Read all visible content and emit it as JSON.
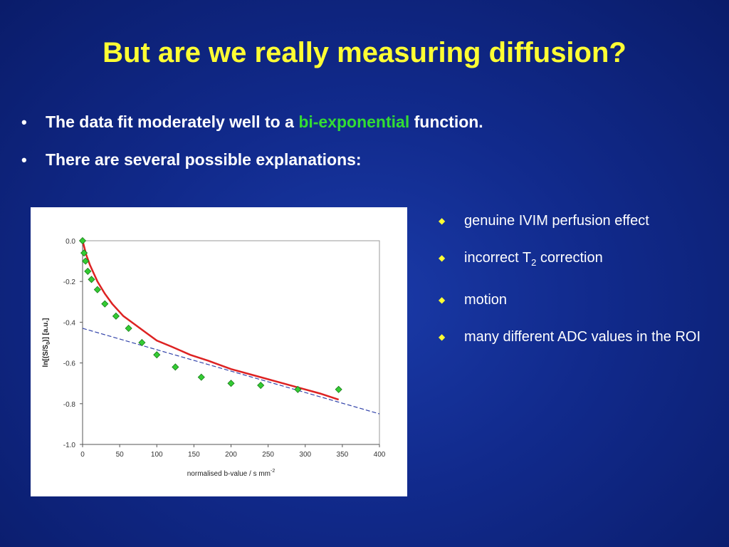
{
  "slide": {
    "title": "But are we really measuring diffusion?",
    "bullets": [
      {
        "pre": "The data fit moderately well to a ",
        "highlight": "bi-exponential",
        "post": " function."
      },
      {
        "text": "There are several possible explanations:"
      }
    ],
    "explanations": [
      {
        "text": "genuine IVIM perfusion effect"
      },
      {
        "pre": "incorrect T",
        "sub": "2",
        "post": " correction"
      },
      {
        "text": "motion"
      },
      {
        "text": "many different ADC values in the ROI"
      }
    ],
    "bullet_glyph": "•",
    "diamond_icon": "◆",
    "colors": {
      "title": "#ffff33",
      "highlight": "#33dd33",
      "text": "#ffffff",
      "background": "#112a8c"
    }
  },
  "chart_data": {
    "type": "scatter",
    "xlabel": "normalised b-value / s mm",
    "xlabel_sup": "-2",
    "ylabel": "ln[(S/S",
    "ylabel_sub": "0",
    "ylabel_post": ")] [a.u.]",
    "xlim": [
      0,
      400
    ],
    "ylim": [
      -1.0,
      0.0
    ],
    "x_ticks": [
      "0",
      "50",
      "100",
      "150",
      "200",
      "250",
      "300",
      "350",
      "400"
    ],
    "y_ticks": [
      "0.0",
      "-0.2",
      "-0.4",
      "-0.6",
      "-0.8",
      "-1.0"
    ],
    "x_tick_values": [
      0,
      50,
      100,
      150,
      200,
      250,
      300,
      350,
      400
    ],
    "y_tick_values": [
      0.0,
      -0.2,
      -0.4,
      -0.6,
      -0.8,
      -1.0
    ],
    "series": [
      {
        "kind": "points",
        "color": "#33cc33",
        "x": [
          0,
          2,
          4,
          7,
          12,
          20,
          30,
          45,
          62,
          80,
          100,
          125,
          160,
          200,
          240,
          290,
          345
        ],
        "y": [
          0.0,
          -0.06,
          -0.1,
          -0.15,
          -0.19,
          -0.24,
          -0.31,
          -0.37,
          -0.43,
          -0.5,
          -0.56,
          -0.62,
          -0.67,
          -0.7,
          -0.71,
          -0.73,
          -0.73
        ]
      },
      {
        "kind": "fit",
        "color": "#dd2222",
        "x": [
          0,
          5,
          10,
          20,
          30,
          40,
          55,
          70,
          85,
          100,
          120,
          145,
          170,
          200,
          230,
          260,
          290,
          320,
          345
        ],
        "y": [
          0.0,
          -0.07,
          -0.12,
          -0.2,
          -0.26,
          -0.31,
          -0.37,
          -0.41,
          -0.45,
          -0.49,
          -0.52,
          -0.56,
          -0.59,
          -0.63,
          -0.66,
          -0.69,
          -0.72,
          -0.75,
          -0.78
        ]
      },
      {
        "kind": "asymptote",
        "color": "#3344aa",
        "x": [
          0,
          400
        ],
        "y": [
          -0.43,
          -0.85
        ]
      }
    ]
  }
}
